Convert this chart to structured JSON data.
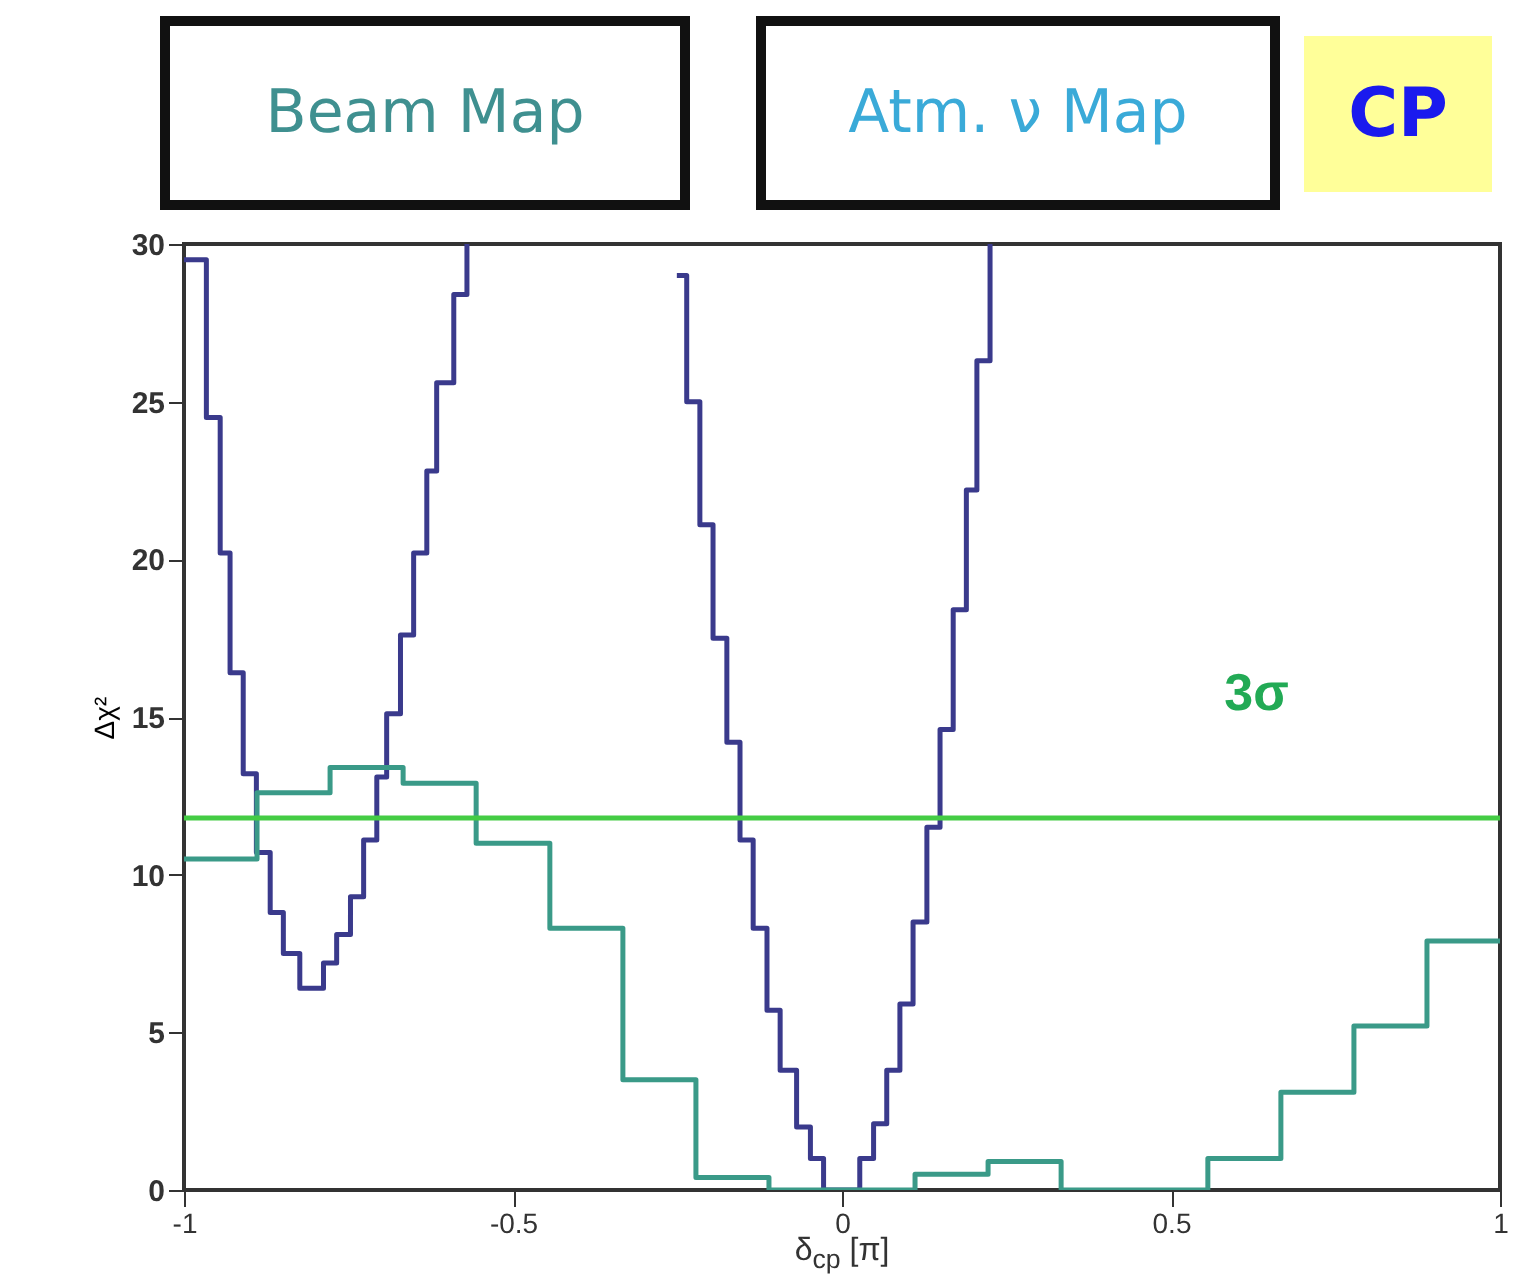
{
  "chart_data": {
    "type": "step",
    "annotations": [
      "Beam Map",
      "Atm. ν Map",
      "CP"
    ],
    "xlabel": "δ$_{cp}$ [π]",
    "ylabel": "Δχ²",
    "xlim": [
      -1,
      1
    ],
    "xticks": [
      -1,
      -0.5,
      0,
      0.5,
      1
    ],
    "ylim": [
      0,
      30
    ],
    "yticks": [
      0,
      5,
      10,
      15,
      20,
      25,
      30
    ],
    "grid": false,
    "series": [
      {
        "color": "#3a3a8c",
        "x": [
          -1,
          -0.966,
          -0.945,
          -0.93,
          -0.91,
          -0.89,
          -0.869,
          -0.849,
          -0.824,
          -0.788,
          -0.768,
          -0.747,
          -0.727,
          -0.707,
          -0.692,
          -0.671,
          -0.651,
          -0.631,
          -0.616,
          -0.59,
          -0.57
        ],
        "values": [
          29.5,
          24.5,
          20.2,
          16.4,
          13.2,
          10.7,
          8.8,
          7.5,
          6.4,
          7.2,
          8.1,
          9.3,
          11.1,
          13.1,
          15.1,
          17.6,
          20.2,
          22.8,
          25.6,
          28.4,
          30
        ]
      },
      {
        "color": "#3a3a8c",
        "x": [
          -0.251,
          -0.236,
          -0.216,
          -0.196,
          -0.175,
          -0.155,
          -0.135,
          -0.114,
          -0.094,
          -0.069,
          -0.048,
          -0.028,
          0.027,
          0.048,
          0.068,
          0.088,
          0.108,
          0.129,
          0.149,
          0.169,
          0.189,
          0.205,
          0.225
        ],
        "values": [
          29.0,
          25.0,
          21.1,
          17.5,
          14.2,
          11.1,
          8.3,
          5.7,
          3.8,
          2.0,
          1.0,
          0,
          1.0,
          2.1,
          3.8,
          5.9,
          8.5,
          11.5,
          14.6,
          18.4,
          22.2,
          26.3,
          30
        ]
      },
      {
        "color": "#3a9a88",
        "x": [
          -1,
          -0.889,
          -0.778,
          -0.667,
          -0.556,
          -0.444,
          -0.333,
          -0.222,
          -0.111,
          0,
          0.111,
          0.222,
          0.333,
          0.444,
          0.556,
          0.667,
          0.778,
          0.889,
          1
        ],
        "values": [
          10.5,
          12.6,
          13.4,
          12.9,
          11.0,
          8.3,
          3.5,
          0.4,
          0,
          0,
          0.5,
          0.9,
          0,
          0,
          1.0,
          3.1,
          5.2,
          7.9,
          7.9
        ]
      }
    ],
    "ref_lines": [
      {
        "axis": "y",
        "value": 11.8,
        "label": "3σ",
        "color": "#44cc44"
      }
    ]
  }
}
